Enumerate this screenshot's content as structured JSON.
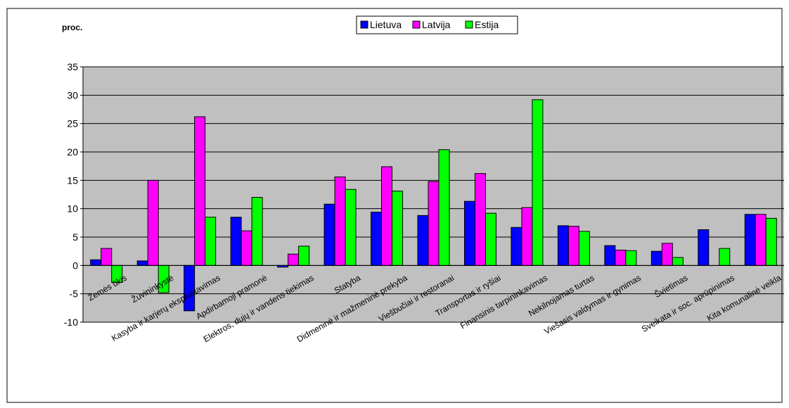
{
  "chart_data": {
    "type": "bar",
    "unit_label": "proc.",
    "categories": [
      "Žemės ūkis",
      "Žuvininkystė",
      "Kasyba ir karjerų eksploatavimas",
      "Apdirbamoji pramonė",
      "Elektros, dujų ir vandens tiekimas",
      "Statyba",
      "Didmeninė ir mažmeninė prekyba",
      "Viešbučiai ir restoranai",
      "Transportas ir ryšiai",
      "Finansinis tarpininkavimas",
      "Nekilnojamas turtas",
      "Viešasis valdymas ir gynimas",
      "Švietimas",
      "Sveikata ir soc. aprūpinimas",
      "Kita komunalinė veikla"
    ],
    "series": [
      {
        "name": "Lietuva",
        "color": "#0000ff",
        "values": [
          1.0,
          0.8,
          -8.0,
          8.5,
          -0.3,
          10.8,
          9.4,
          8.8,
          11.3,
          6.7,
          7.0,
          3.5,
          2.5,
          6.3,
          9.0
        ]
      },
      {
        "name": "Latvija",
        "color": "#ff00ff",
        "values": [
          3.0,
          15.0,
          26.2,
          6.1,
          2.0,
          15.6,
          17.4,
          14.8,
          16.2,
          10.2,
          6.9,
          2.7,
          3.9,
          0.0,
          9.0
        ]
      },
      {
        "name": "Estija",
        "color": "#00ff00",
        "values": [
          -3.0,
          -4.8,
          8.5,
          12.0,
          3.4,
          13.4,
          13.1,
          20.4,
          9.2,
          29.2,
          6.0,
          2.6,
          1.4,
          3.0,
          8.3
        ]
      }
    ],
    "ylim": [
      -10,
      35
    ],
    "y_ticks": [
      35,
      30,
      25,
      20,
      15,
      10,
      5,
      0,
      -5,
      -10
    ],
    "legend_position": "top-center",
    "grid": true,
    "plot_background": "#c0c0c0",
    "page_background": "#ffffff"
  }
}
